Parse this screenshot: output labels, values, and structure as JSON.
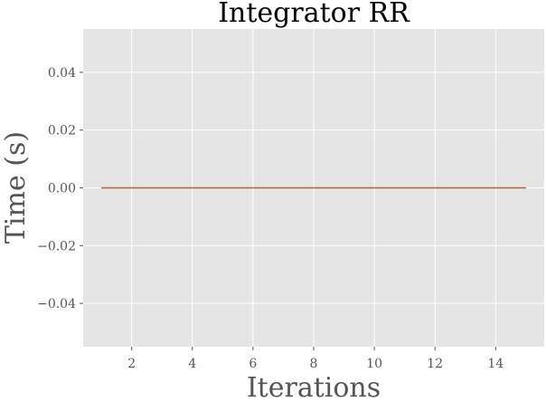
{
  "chart_data": {
    "type": "line",
    "title": "Integrator RR",
    "xlabel": "Iterations",
    "ylabel": "Time (s)",
    "xlim": [
      0.4,
      15.6
    ],
    "ylim": [
      -0.055,
      0.055
    ],
    "x_ticks": [
      2,
      4,
      6,
      8,
      10,
      12,
      14
    ],
    "x_tick_labels": [
      "2",
      "4",
      "6",
      "8",
      "10",
      "12",
      "14"
    ],
    "y_ticks": [
      -0.04,
      -0.02,
      0.0,
      0.02,
      0.04
    ],
    "y_tick_labels": [
      "−0.04",
      "−0.02",
      "0.00",
      "0.02",
      "0.04"
    ],
    "grid": true,
    "background": "#e5e5e5",
    "series": [
      {
        "color": "#e24a33",
        "x": [
          1,
          2,
          3,
          4,
          5,
          6,
          7,
          8,
          9,
          10,
          11,
          12,
          13,
          14,
          15
        ],
        "y": [
          0,
          0,
          0,
          0,
          0,
          0,
          0,
          0,
          0,
          0,
          0,
          0,
          0,
          0,
          0
        ]
      }
    ]
  }
}
